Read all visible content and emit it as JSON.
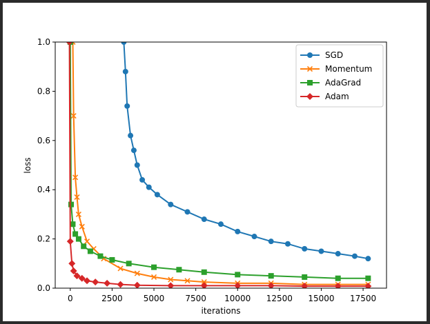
{
  "chart_data": {
    "type": "line",
    "xlabel": "iterations",
    "ylabel": "loss",
    "xlim": [
      -900,
      18900
    ],
    "ylim": [
      0,
      1.0
    ],
    "x_ticks": [
      0,
      2500,
      5000,
      7500,
      10000,
      12500,
      15000,
      17500
    ],
    "y_ticks": [
      0.0,
      0.2,
      0.4,
      0.6,
      0.8,
      1.0
    ],
    "x_tick_labels": [
      "0",
      "2500",
      "5000",
      "7500",
      "10000",
      "12500",
      "15000",
      "17500"
    ],
    "y_tick_labels": [
      "0.0",
      "0.2",
      "0.4",
      "0.6",
      "0.8",
      "1.0"
    ],
    "grid": false,
    "legend_position": "top-right",
    "series": [
      {
        "name": "SGD",
        "color": "#1f77b4",
        "marker": "circle",
        "x": [
          3200,
          3300,
          3400,
          3600,
          3800,
          4000,
          4300,
          4700,
          5200,
          6000,
          7000,
          8000,
          9000,
          10000,
          11000,
          12000,
          13000,
          14000,
          15000,
          16000,
          17000,
          17800
        ],
        "y": [
          1.0,
          0.88,
          0.74,
          0.62,
          0.56,
          0.5,
          0.44,
          0.41,
          0.38,
          0.34,
          0.31,
          0.28,
          0.26,
          0.23,
          0.21,
          0.19,
          0.18,
          0.16,
          0.15,
          0.14,
          0.13,
          0.12
        ]
      },
      {
        "name": "Momentum",
        "color": "#ff7f0e",
        "marker": "x",
        "x": [
          150,
          200,
          300,
          400,
          500,
          700,
          1000,
          1400,
          2000,
          3000,
          4000,
          5000,
          6000,
          7000,
          8000,
          10000,
          12000,
          14000,
          16000,
          17800
        ],
        "y": [
          1.0,
          0.7,
          0.45,
          0.37,
          0.3,
          0.25,
          0.19,
          0.16,
          0.12,
          0.08,
          0.06,
          0.045,
          0.035,
          0.03,
          0.025,
          0.02,
          0.02,
          0.015,
          0.015,
          0.015
        ]
      },
      {
        "name": "AdaGrad",
        "color": "#2ca02c",
        "marker": "square",
        "x": [
          0,
          50,
          150,
          300,
          500,
          800,
          1200,
          1800,
          2500,
          3500,
          5000,
          6500,
          8000,
          10000,
          12000,
          14000,
          16000,
          17800
        ],
        "y": [
          1.0,
          0.34,
          0.26,
          0.22,
          0.2,
          0.17,
          0.15,
          0.13,
          0.115,
          0.1,
          0.085,
          0.075,
          0.065,
          0.055,
          0.05,
          0.045,
          0.04,
          0.04
        ]
      },
      {
        "name": "Adam",
        "color": "#d62728",
        "marker": "diamond",
        "x": [
          -50,
          0,
          100,
          200,
          400,
          700,
          1000,
          1500,
          2200,
          3000,
          4000,
          6000,
          8000,
          10000,
          12000,
          14000,
          16000,
          17800
        ],
        "y": [
          1.0,
          0.19,
          0.1,
          0.07,
          0.05,
          0.04,
          0.03,
          0.025,
          0.02,
          0.015,
          0.012,
          0.01,
          0.01,
          0.01,
          0.01,
          0.008,
          0.008,
          0.008
        ]
      }
    ]
  }
}
